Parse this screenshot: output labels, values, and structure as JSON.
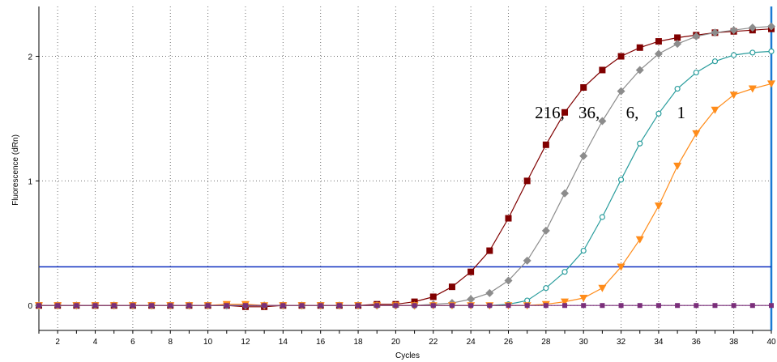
{
  "chart_data": {
    "type": "line",
    "xlabel": "Cycles",
    "ylabel": "Fluorescence (dRn)",
    "xlim": [
      1,
      40
    ],
    "ylim": [
      -0.2,
      2.4
    ],
    "x_ticks": [
      2,
      4,
      6,
      8,
      10,
      12,
      14,
      16,
      18,
      20,
      22,
      24,
      26,
      28,
      30,
      32,
      34,
      36,
      38,
      40
    ],
    "x_tick_labels": [
      "2",
      "4",
      "6",
      "8",
      "10",
      "12",
      "14",
      "16",
      "18",
      "20",
      "22",
      "24",
      "26",
      "28",
      "30",
      "32",
      "34",
      "36",
      "38",
      "40"
    ],
    "y_ticks": [
      0,
      1,
      2
    ],
    "y_tick_labels": [
      "0",
      "1",
      "2"
    ],
    "grid": true,
    "threshold": 0.31,
    "annotations": [
      {
        "text": "216,",
        "x": 28.2,
        "y": 1.55
      },
      {
        "text": "36,",
        "x": 30.3,
        "y": 1.55
      },
      {
        "text": "6,",
        "x": 32.6,
        "y": 1.55
      },
      {
        "text": "1",
        "x": 35.2,
        "y": 1.55
      }
    ],
    "series": [
      {
        "color": "#800000",
        "marker": "square",
        "x": [
          1,
          2,
          3,
          4,
          5,
          6,
          7,
          8,
          9,
          10,
          11,
          12,
          13,
          14,
          15,
          16,
          17,
          18,
          19,
          20,
          21,
          22,
          23,
          24,
          25,
          26,
          27,
          28,
          29,
          30,
          31,
          32,
          33,
          34,
          35,
          36,
          37,
          38,
          39,
          40
        ],
        "values": [
          0,
          0,
          0,
          0,
          0,
          0,
          0,
          0,
          0,
          0,
          0,
          -0.01,
          -0.01,
          0,
          0,
          0,
          0,
          0,
          0.01,
          0.01,
          0.03,
          0.07,
          0.15,
          0.27,
          0.44,
          0.7,
          1.0,
          1.29,
          1.55,
          1.75,
          1.89,
          2.0,
          2.07,
          2.12,
          2.15,
          2.17,
          2.19,
          2.2,
          2.21,
          2.22
        ]
      },
      {
        "color": "#8c8c8c",
        "marker": "diamond",
        "x": [
          1,
          2,
          3,
          4,
          5,
          6,
          7,
          8,
          9,
          10,
          11,
          12,
          13,
          14,
          15,
          16,
          17,
          18,
          19,
          20,
          21,
          22,
          23,
          24,
          25,
          26,
          27,
          28,
          29,
          30,
          31,
          32,
          33,
          34,
          35,
          36,
          37,
          38,
          39,
          40
        ],
        "values": [
          0,
          0,
          0,
          0,
          0,
          0,
          0,
          0,
          0,
          0,
          0,
          0,
          0,
          0,
          0,
          0,
          0,
          0,
          0,
          0,
          0,
          0.01,
          0.02,
          0.05,
          0.1,
          0.2,
          0.36,
          0.6,
          0.9,
          1.2,
          1.48,
          1.72,
          1.89,
          2.02,
          2.1,
          2.16,
          2.19,
          2.21,
          2.23,
          2.24
        ]
      },
      {
        "color": "#2a9d9d",
        "marker": "circle",
        "x": [
          1,
          2,
          3,
          4,
          5,
          6,
          7,
          8,
          9,
          10,
          11,
          12,
          13,
          14,
          15,
          16,
          17,
          18,
          19,
          20,
          21,
          22,
          23,
          24,
          25,
          26,
          27,
          28,
          29,
          30,
          31,
          32,
          33,
          34,
          35,
          36,
          37,
          38,
          39,
          40
        ],
        "values": [
          0,
          0,
          0,
          0,
          0,
          0,
          0,
          0,
          0,
          0,
          0,
          0,
          0,
          0,
          0,
          0,
          0,
          0,
          0,
          0,
          0,
          0,
          0,
          0,
          0,
          0.01,
          0.04,
          0.14,
          0.27,
          0.44,
          0.71,
          1.01,
          1.3,
          1.54,
          1.74,
          1.87,
          1.96,
          2.01,
          2.03,
          2.04
        ]
      },
      {
        "color": "#ff8c1a",
        "marker": "triangle-down",
        "x": [
          1,
          2,
          3,
          4,
          5,
          6,
          7,
          8,
          9,
          10,
          11,
          12,
          13,
          14,
          15,
          16,
          17,
          18,
          19,
          20,
          21,
          22,
          23,
          24,
          25,
          26,
          27,
          28,
          29,
          30,
          31,
          32,
          33,
          34,
          35,
          36,
          37,
          38,
          39,
          40
        ],
        "values": [
          0,
          0,
          0,
          0,
          0,
          0,
          0,
          0,
          0,
          0,
          0.01,
          0.01,
          0,
          0,
          0,
          0,
          0,
          0,
          0,
          0,
          0,
          0,
          0,
          0,
          0,
          0,
          0,
          0.01,
          0.03,
          0.06,
          0.14,
          0.31,
          0.53,
          0.8,
          1.12,
          1.38,
          1.57,
          1.69,
          1.74,
          1.78
        ]
      },
      {
        "color": "#7a2e7a",
        "marker": "square-small",
        "x": [
          1,
          2,
          3,
          4,
          5,
          6,
          7,
          8,
          9,
          10,
          11,
          12,
          13,
          14,
          15,
          16,
          17,
          18,
          19,
          20,
          21,
          22,
          23,
          24,
          25,
          26,
          27,
          28,
          29,
          30,
          31,
          32,
          33,
          34,
          35,
          36,
          37,
          38,
          39,
          40
        ],
        "values": [
          0,
          0,
          0,
          0,
          0,
          0,
          0,
          0,
          0,
          0,
          0,
          0,
          0,
          0,
          0,
          0,
          0,
          0,
          0,
          0,
          0,
          0,
          0,
          0,
          0,
          0,
          0,
          0,
          0,
          0,
          0,
          0,
          0,
          0,
          0,
          0,
          0,
          0,
          0,
          0
        ]
      }
    ]
  }
}
